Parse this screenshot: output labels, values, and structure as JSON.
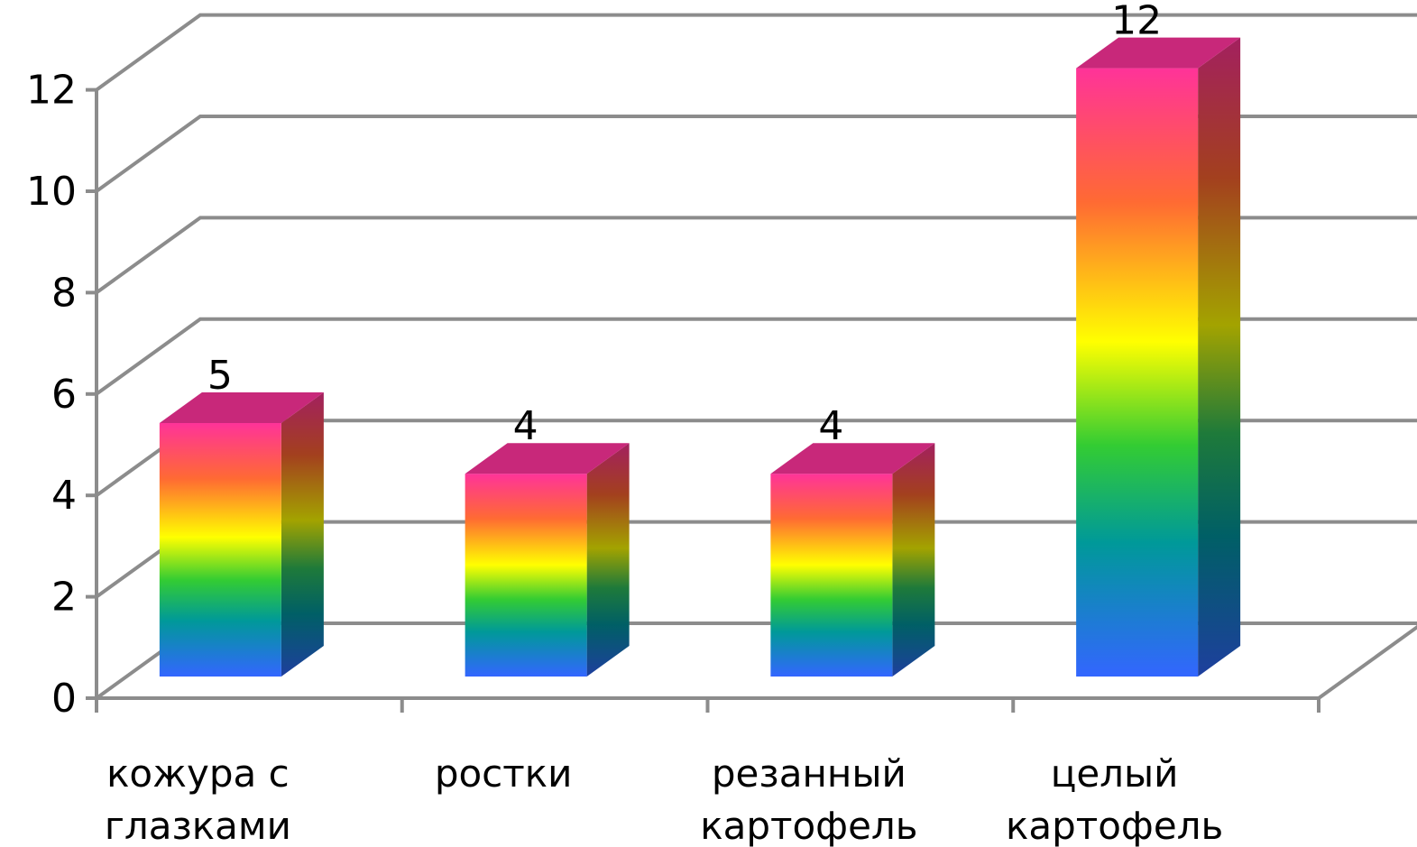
{
  "chart_data": {
    "type": "bar",
    "style": "3d-column",
    "categories": [
      [
        "кожура с",
        "глазками"
      ],
      [
        "ростки"
      ],
      [
        "резанный",
        "картофель"
      ],
      [
        "целый",
        "картофель"
      ]
    ],
    "values": [
      5,
      4,
      4,
      12
    ],
    "ylim": [
      0,
      12
    ],
    "yticks": [
      0,
      2,
      4,
      6,
      8,
      10,
      12
    ],
    "grid": true,
    "legend": "none",
    "colors": {
      "gradient_top": "#ff3399",
      "gradient_orange": "#ff6a33",
      "gradient_yellow": "#ffff00",
      "gradient_green": "#33cc33",
      "gradient_teal": "#009999",
      "gradient_bottom": "#3366ff",
      "grid": "#8c8c8c"
    }
  }
}
